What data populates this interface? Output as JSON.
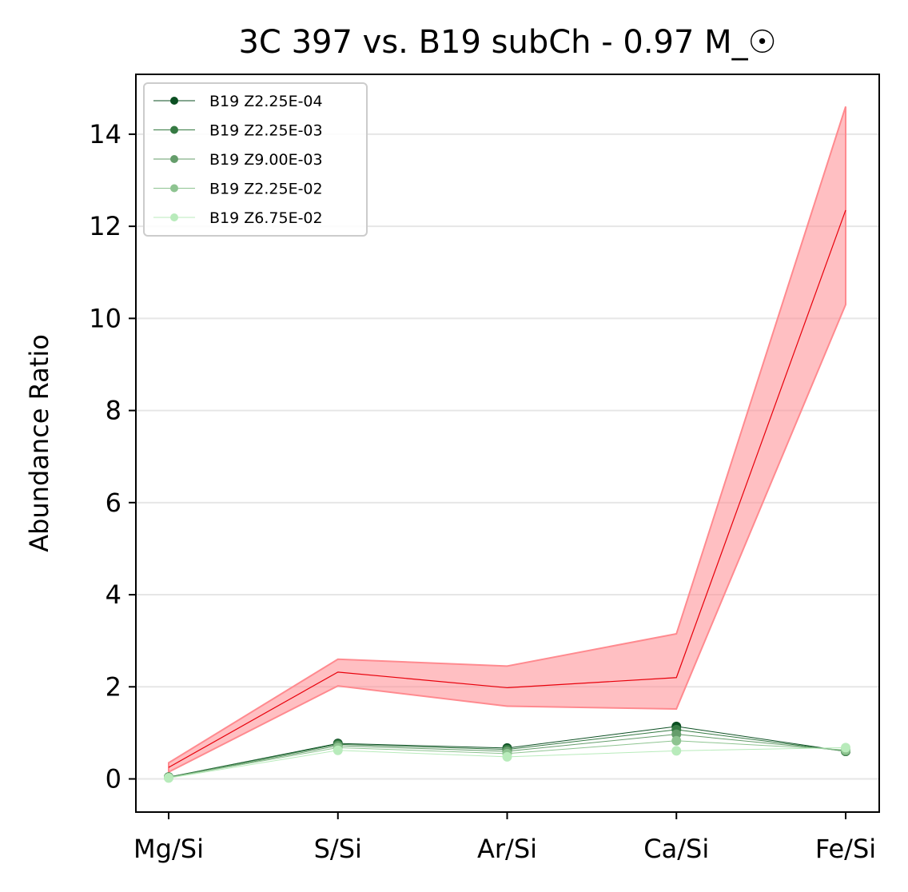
{
  "chart_data": {
    "type": "line",
    "title": "3C 397 vs. B19 subCh - 0.97 M_☉",
    "xlabel": "",
    "ylabel": "Abundance Ratio",
    "categories": [
      "Mg/Si",
      "S/Si",
      "Ar/Si",
      "Ca/Si",
      "Fe/Si"
    ],
    "ylim": [
      -0.72,
      15.3
    ],
    "yticks": [
      0,
      2,
      4,
      6,
      8,
      10,
      12,
      14
    ],
    "grid": "horizontal",
    "legend_position": "top-left",
    "observed": {
      "name": "3C 397",
      "color": "#e8000b",
      "band_color": "#ff8a8f",
      "values": [
        0.25,
        2.32,
        1.98,
        2.2,
        12.35
      ],
      "lower": [
        0.15,
        2.02,
        1.58,
        1.52,
        10.3
      ],
      "upper": [
        0.35,
        2.6,
        2.45,
        3.15,
        14.6
      ]
    },
    "series": [
      {
        "name": "B19 Z2.25E-04",
        "color": "#0b4f22",
        "values": [
          0.04,
          0.77,
          0.67,
          1.14,
          0.6
        ]
      },
      {
        "name": "B19 Z2.25E-03",
        "color": "#357a43",
        "values": [
          0.04,
          0.75,
          0.64,
          1.07,
          0.6
        ]
      },
      {
        "name": "B19 Z9.00E-03",
        "color": "#659d6b",
        "values": [
          0.03,
          0.72,
          0.6,
          0.97,
          0.61
        ]
      },
      {
        "name": "B19 Z2.25E-02",
        "color": "#8ec491",
        "values": [
          0.03,
          0.68,
          0.55,
          0.83,
          0.63
        ]
      },
      {
        "name": "B19 Z6.75E-02",
        "color": "#b8ebbb",
        "values": [
          0.02,
          0.62,
          0.48,
          0.61,
          0.68
        ]
      }
    ]
  }
}
